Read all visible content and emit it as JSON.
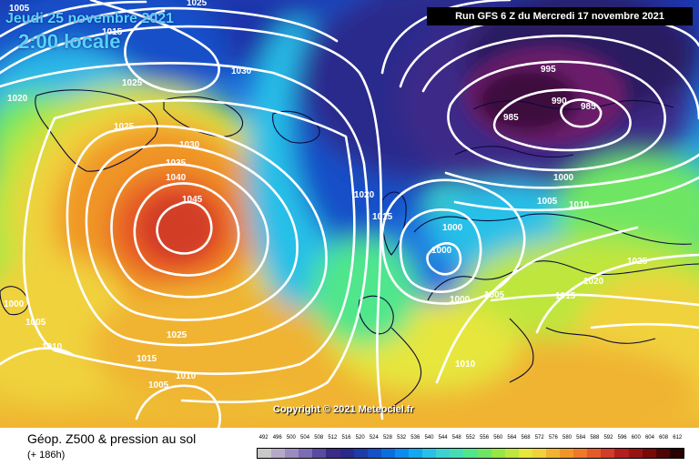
{
  "header": {
    "date_line": "Jeudi 25 novembre 2021",
    "time_line": "2:00 locale",
    "run_info": "Run GFS 6 Z du Mercredi 17 novembre 2021"
  },
  "map": {
    "copyright": "Copyright © 2021 Meteociel.fr",
    "pressure_labels": [
      "1005",
      "1025",
      "1015",
      "1030",
      "1020",
      "1025",
      "1025",
      "1030",
      "1035",
      "1040",
      "1045",
      "1025",
      "1015",
      "1010",
      "1005",
      "1000",
      "1005",
      "1010",
      "1020",
      "1015",
      "1000",
      "1000",
      "1000",
      "1005",
      "1010",
      "995",
      "990",
      "985",
      "985",
      "1000",
      "1005",
      "1010",
      "1025",
      "1020",
      "1015"
    ]
  },
  "footer": {
    "title": "Géop. Z500 & pression au sol",
    "subtitle": "(+ 186h)"
  },
  "legend": {
    "labels": [
      "492",
      "496",
      "500",
      "504",
      "508",
      "512",
      "516",
      "520",
      "524",
      "528",
      "532",
      "536",
      "540",
      "544",
      "548",
      "552",
      "556",
      "560",
      "564",
      "568",
      "572",
      "576",
      "580",
      "584",
      "588",
      "592",
      "596",
      "600",
      "604",
      "608",
      "612"
    ],
    "colors": [
      "#c8c8c8",
      "#b4aac8",
      "#9a8cc0",
      "#7c6cb4",
      "#5a4aa0",
      "#3c2c88",
      "#2a2a8c",
      "#1e3ca8",
      "#1450c8",
      "#0a6ee0",
      "#0a8cf0",
      "#14a8f0",
      "#28c0e8",
      "#3cd2d2",
      "#46dcb4",
      "#50e68c",
      "#6ee664",
      "#96e646",
      "#bee63c",
      "#e6e63c",
      "#f0d23c",
      "#f0b432",
      "#f09628",
      "#f07828",
      "#e65a28",
      "#d23c28",
      "#b41e1e",
      "#961414",
      "#780a0a",
      "#500505",
      "#280000"
    ]
  }
}
